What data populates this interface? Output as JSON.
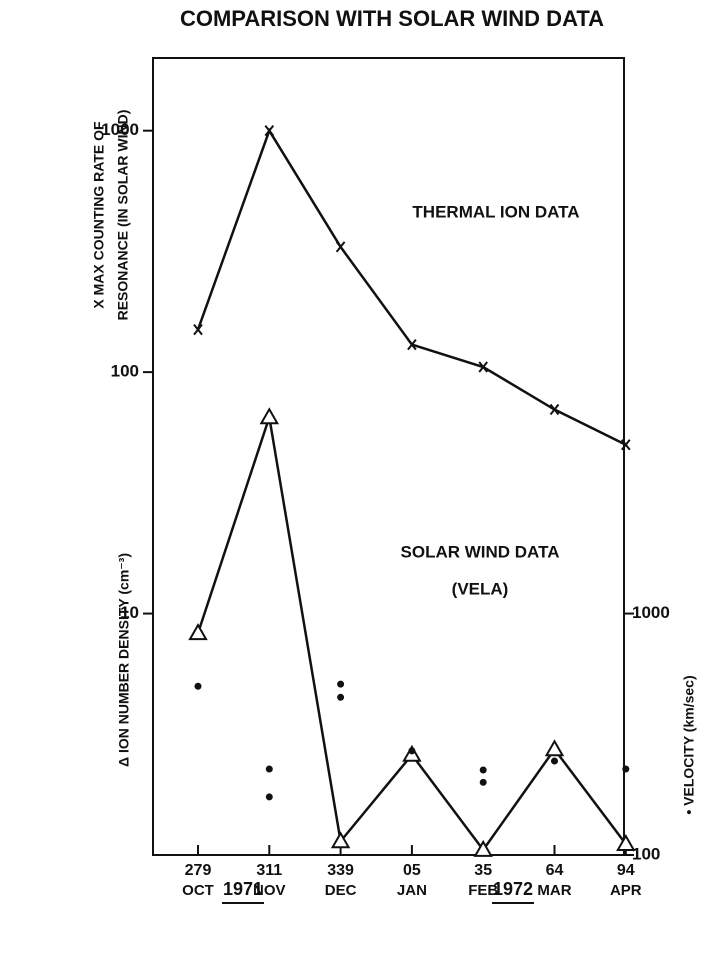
{
  "chart_data": {
    "type": "line",
    "title": "COMPARISON WITH SOLAR WIND DATA",
    "categories": [
      "279",
      "311",
      "339",
      "05",
      "35",
      "64",
      "94"
    ],
    "category_months": [
      "OCT",
      "NOV",
      "DEC",
      "JAN",
      "FEB",
      "MAR",
      "APR"
    ],
    "years": [
      "1971",
      "1972"
    ],
    "y_label_top": [
      "X MAX COUNTING RATE OF",
      "RESONANCE (IN SOLAR WIND)"
    ],
    "y_label_bottom": "Δ ION NUMBER DENSITY (cm⁻³)",
    "y2_label": "• VELOCITY (km/sec)",
    "annotations": [
      "THERMAL ION DATA",
      "SOLAR WIND DATA",
      "(VELA)"
    ],
    "log_scale": true,
    "ylim": [
      1,
      2000
    ],
    "yticks": [
      10,
      100,
      1000
    ],
    "y2lim": [
      100,
      200000
    ],
    "y2ticks": [
      100,
      1000
    ],
    "color": "#111111",
    "series": [
      {
        "marker": "x",
        "values": [
          150,
          1000,
          330,
          130,
          105,
          70,
          50
        ]
      },
      {
        "marker": "triangle",
        "values": [
          8.3,
          65,
          1.14,
          2.6,
          1.05,
          2.74,
          1.11
        ]
      }
    ],
    "velocity": {
      "axis": "y2",
      "marker": "dot",
      "values": [
        [
          500
        ],
        [
          227,
          174
        ],
        [
          510,
          450
        ],
        [
          270
        ],
        [
          225,
          200
        ],
        [
          245
        ],
        [
          227
        ]
      ]
    }
  }
}
